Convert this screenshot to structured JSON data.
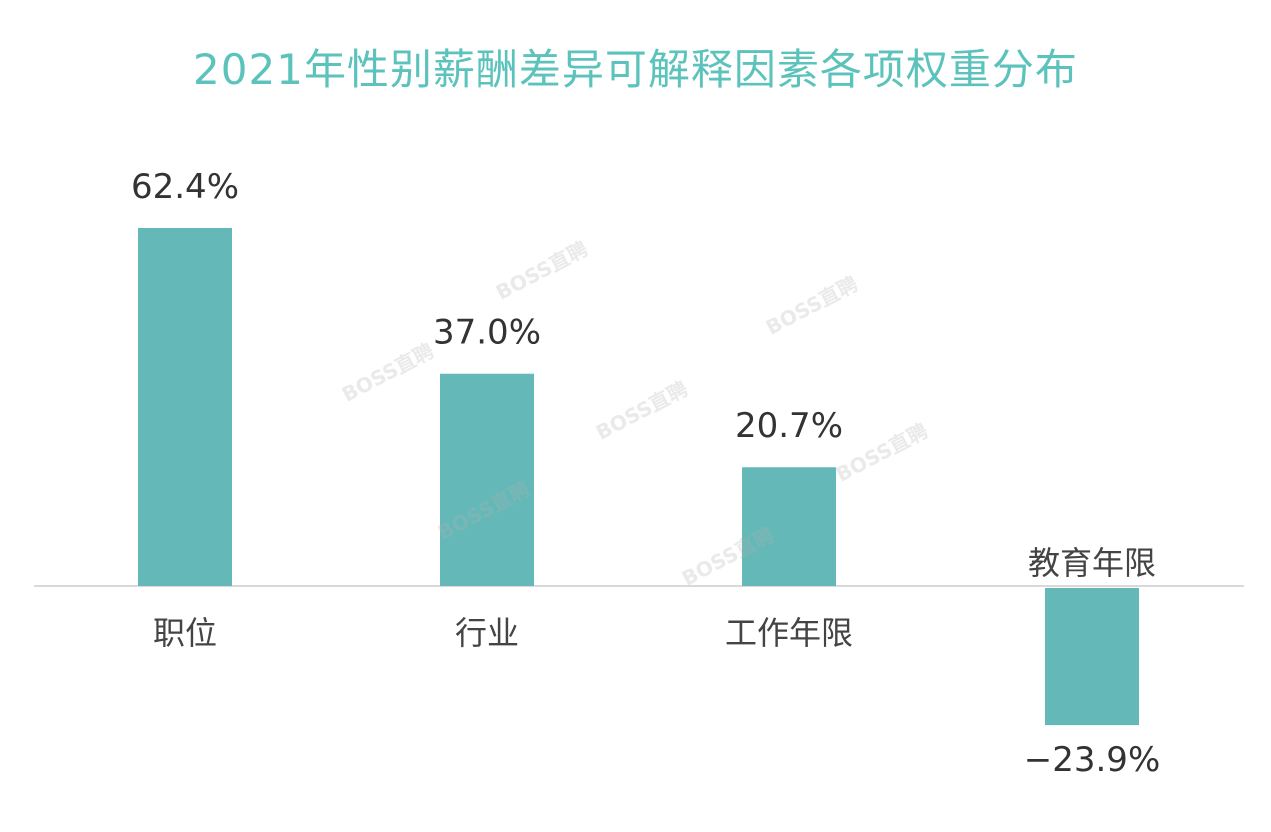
{
  "chart_data": {
    "type": "bar",
    "title": "2021年性别薪酬差异可解释因素各项权重分布",
    "categories": [
      "职位",
      "行业",
      "工作年限",
      "教育年限"
    ],
    "values": [
      62.4,
      37.0,
      20.7,
      -23.9
    ],
    "value_labels": [
      "62.4%",
      "37.0%",
      "20.7%",
      "−23.9%"
    ],
    "unit": "%",
    "bar_color": "#64b8b8",
    "title_color": "#5cc3bc",
    "axis_color": "#d9d9d9",
    "ylim": [
      -30,
      70
    ],
    "grid": false,
    "legend": "none"
  },
  "watermark": {
    "text": "BOSS直聘"
  }
}
